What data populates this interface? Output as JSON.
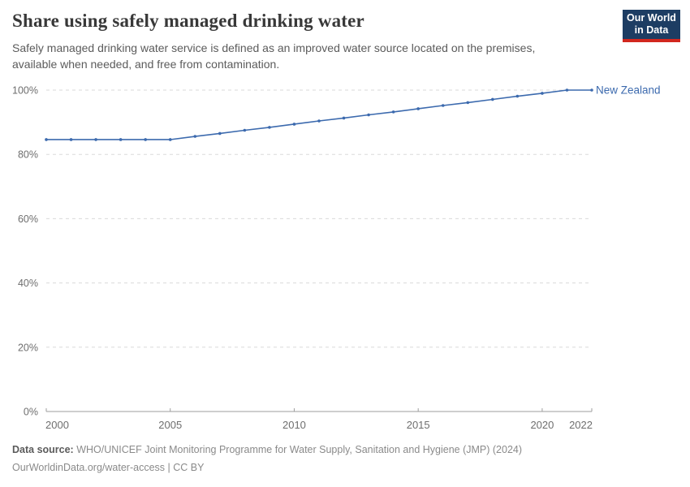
{
  "header": {
    "title": "Share using safely managed drinking water",
    "subtitle": "Safely managed drinking water service is defined as an improved water source located on the premises, available when needed, and free from contamination.",
    "logo_line1": "Our World",
    "logo_line2": "in Data"
  },
  "footer": {
    "label": "Data source:",
    "source": "WHO/UNICEF Joint Monitoring Programme for Water Supply, Sanitation and Hygiene (JMP) (2024)",
    "license_line": "OurWorldinData.org/water-access | CC BY"
  },
  "colors": {
    "accent_blue": "#3c6aae",
    "logo_navy": "#1d3d63",
    "logo_red": "#d2271e",
    "grid": "#dadada",
    "axis": "#9e9e9e",
    "tick_label": "#6e6e6e",
    "title_text": "#383838",
    "subtitle_text": "#5b5b5b",
    "footer_text": "#8a8a8a"
  },
  "chart_data": {
    "type": "line",
    "title": "Share using safely managed drinking water",
    "xlabel": "",
    "ylabel": "",
    "ylim": [
      0,
      100
    ],
    "grid": "dashed-horizontal",
    "legend_position": "end-of-line",
    "x": [
      2000,
      2001,
      2002,
      2003,
      2004,
      2005,
      2006,
      2007,
      2008,
      2009,
      2010,
      2011,
      2012,
      2013,
      2014,
      2015,
      2016,
      2017,
      2018,
      2019,
      2020,
      2021,
      2022
    ],
    "series": [
      {
        "name": "New Zealand",
        "color": "#3c6aae",
        "values": [
          84.6,
          84.6,
          84.6,
          84.6,
          84.6,
          84.6,
          85.6,
          86.5,
          87.5,
          88.4,
          89.4,
          90.4,
          91.3,
          92.3,
          93.2,
          94.2,
          95.2,
          96.1,
          97.1,
          98.1,
          99.0,
          100,
          100
        ]
      }
    ],
    "y_ticks": [
      {
        "value": 0,
        "label": "0%"
      },
      {
        "value": 20,
        "label": "20%"
      },
      {
        "value": 40,
        "label": "40%"
      },
      {
        "value": 60,
        "label": "60%"
      },
      {
        "value": 80,
        "label": "80%"
      },
      {
        "value": 100,
        "label": "100%"
      }
    ],
    "x_ticks": [
      {
        "value": 2000,
        "label": "2000"
      },
      {
        "value": 2005,
        "label": "2005"
      },
      {
        "value": 2010,
        "label": "2010"
      },
      {
        "value": 2015,
        "label": "2015"
      },
      {
        "value": 2020,
        "label": "2020"
      },
      {
        "value": 2022,
        "label": "2022"
      }
    ]
  }
}
